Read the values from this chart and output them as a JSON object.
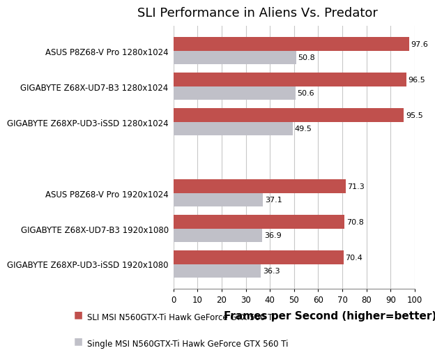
{
  "title": "SLI Performance in Aliens Vs. Predator",
  "xlabel": "Frames per Second (higher=better)",
  "categories": [
    "GIGABYTE Z68XP-UD3-iSSD 1920x1080",
    "GIGABYTE Z68X-UD7-B3 1920x1080",
    "ASUS P8Z68-V Pro 1920x1024",
    "",
    "GIGABYTE Z68XP-UD3-iSSD 1280x1024",
    "GIGABYTE Z68X-UD7-B3 1280x1024",
    "ASUS P8Z68-V Pro 1280x1024"
  ],
  "sli_values": [
    70.4,
    70.8,
    71.3,
    0,
    95.5,
    96.5,
    97.6
  ],
  "single_values": [
    36.3,
    36.9,
    37.1,
    0,
    49.5,
    50.6,
    50.8
  ],
  "sli_color": "#C0504D",
  "single_color": "#C0C0C8",
  "sli_label": "SLI MSI N560GTX-Ti Hawk GeForce GTX 560 Ti",
  "single_label": "Single MSI N560GTX-Ti Hawk GeForce GTX 560 Ti",
  "xlim": [
    0,
    100
  ],
  "xticks": [
    0,
    10,
    20,
    30,
    40,
    50,
    60,
    70,
    80,
    90,
    100
  ],
  "bar_height": 0.38,
  "title_fontsize": 13,
  "label_fontsize": 9.5,
  "tick_fontsize": 8.5,
  "value_fontsize": 8,
  "background_color": "#FFFFFF",
  "grid_color": "#C8C8C8",
  "legend_fontsize": 8.5,
  "xlabel_fontsize": 11
}
